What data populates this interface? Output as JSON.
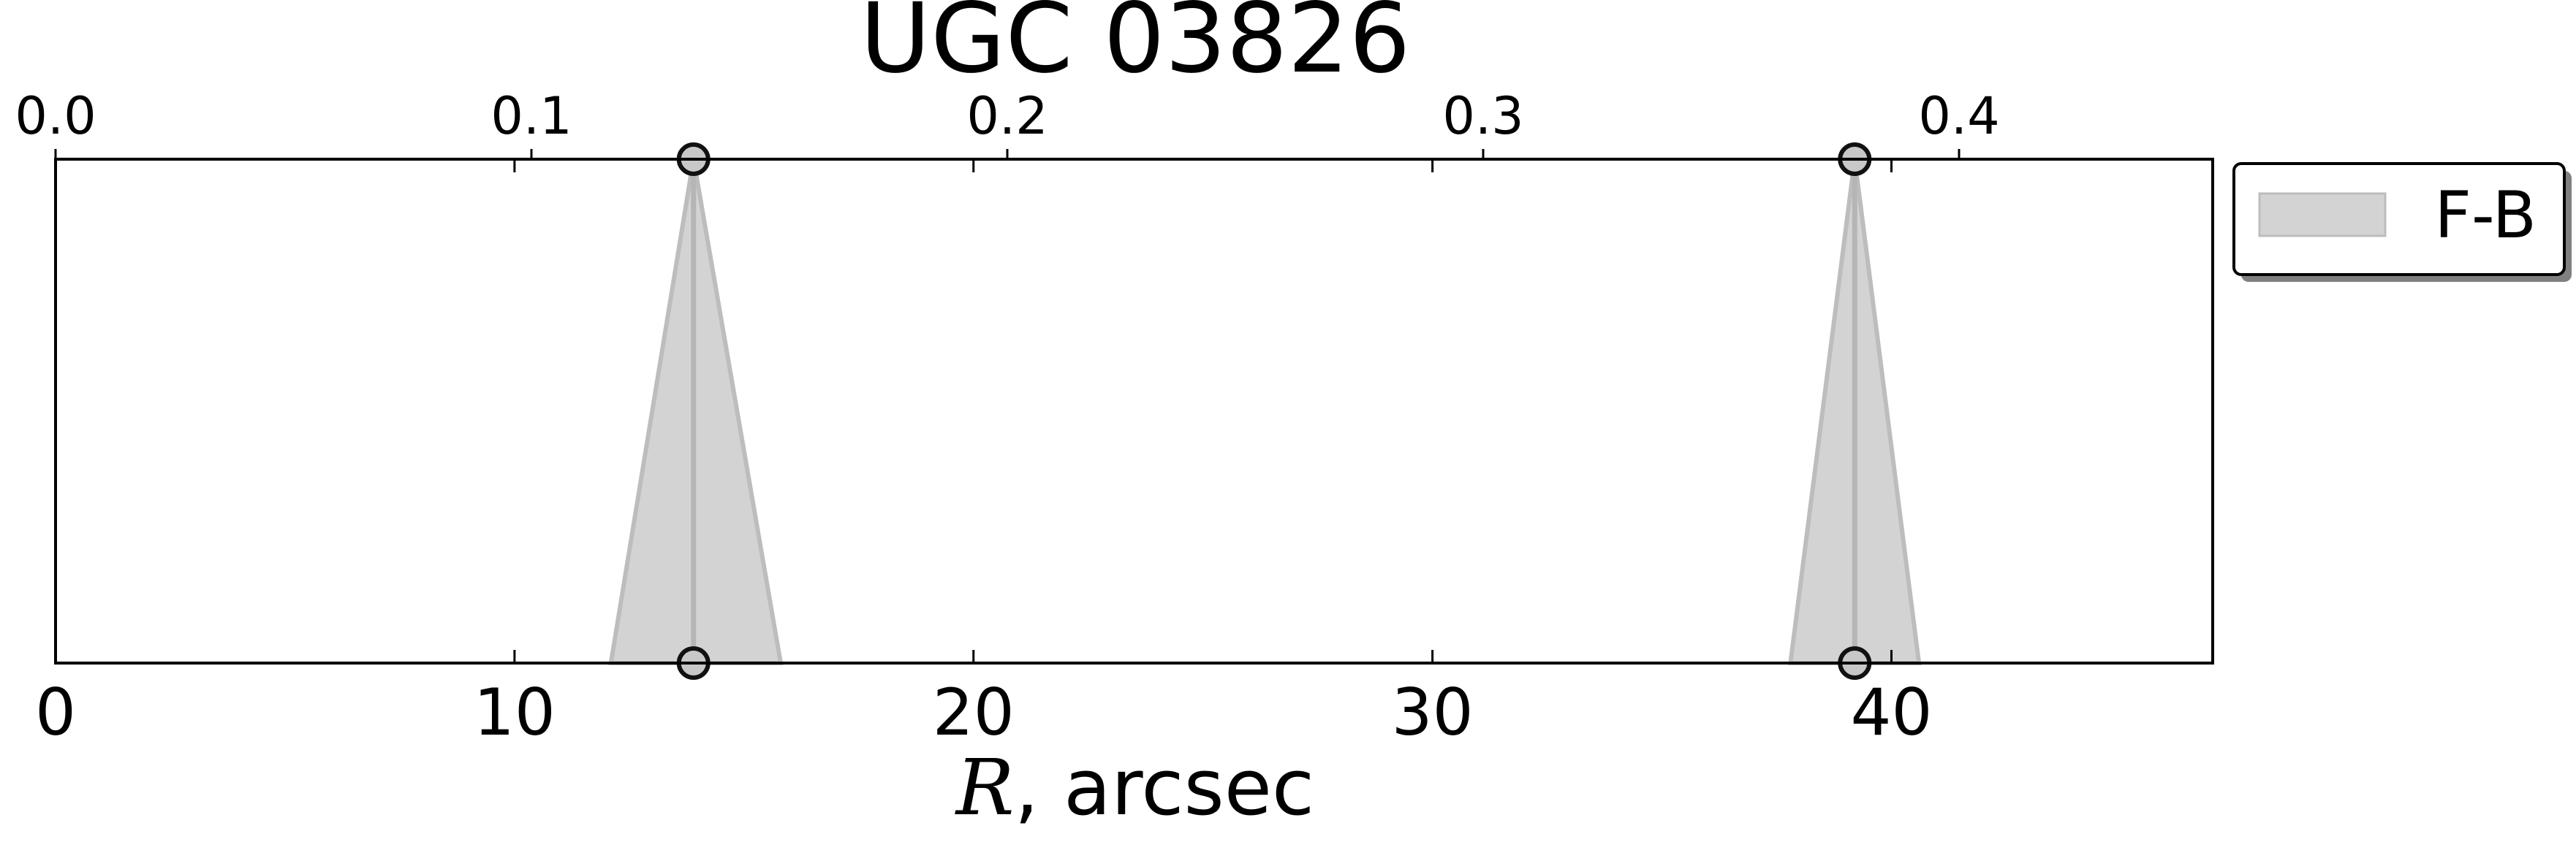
{
  "chart_data": {
    "type": "area",
    "title": "UGC 03826",
    "xlabel_symbol": "R",
    "xlabel_rest": ", arcsec",
    "xlim": [
      0,
      47
    ],
    "xticks": [
      0,
      10,
      20,
      30,
      40
    ],
    "top_axis_ticks": [
      "0.0",
      "0.1",
      "0.2",
      "0.3",
      "0.4"
    ],
    "grid": false,
    "legend": {
      "placement": "outside-right-top",
      "entries": [
        "F-B"
      ]
    },
    "series": [
      {
        "name": "F-B",
        "color": "#d3d3d3",
        "edge_color": "#bdbdbd",
        "peaks": [
          {
            "x": 13.9,
            "base_left": 12.1,
            "base_right": 15.8
          },
          {
            "x": 39.2,
            "base_left": 37.8,
            "base_right": 40.6
          }
        ]
      }
    ]
  }
}
